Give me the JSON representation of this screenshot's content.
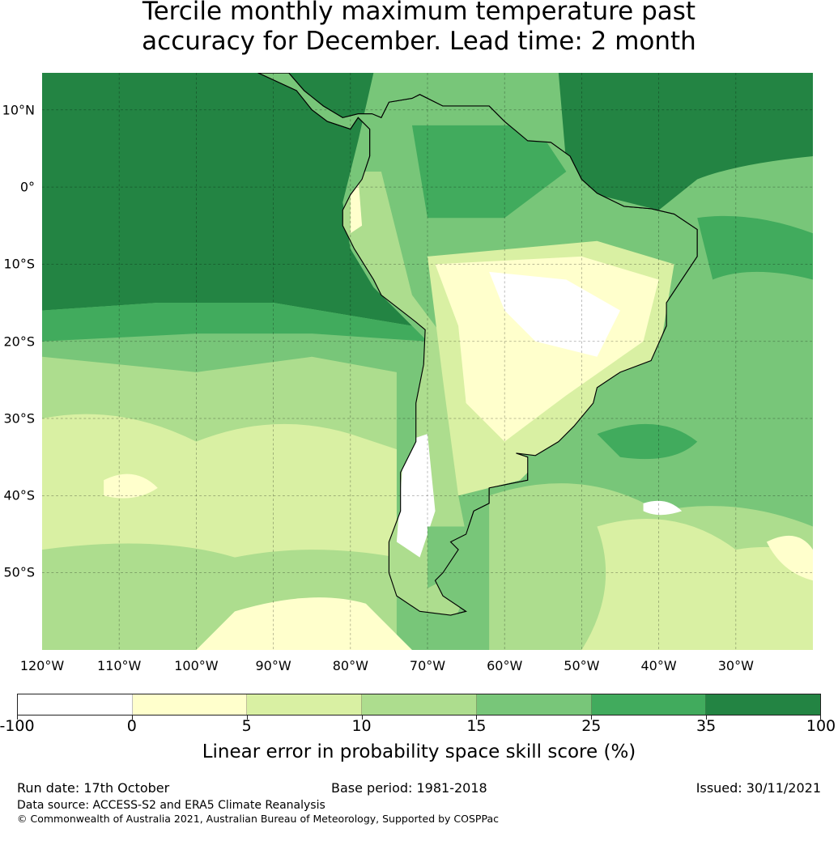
{
  "title": {
    "line1": "Tercile monthly maximum temperature past",
    "line2": "accuracy for December. Lead time: 2 month"
  },
  "map": {
    "region": "South America",
    "lat_labels": [
      "10°N",
      "0°",
      "10°S",
      "20°S",
      "30°S",
      "40°S",
      "50°S"
    ],
    "lon_labels": [
      "120°W",
      "110°W",
      "100°W",
      "90°W",
      "80°W",
      "70°W",
      "60°W",
      "50°W",
      "40°W",
      "30°W"
    ]
  },
  "colorbar": {
    "ticks": [
      "-100",
      "0",
      "5",
      "10",
      "15",
      "25",
      "35",
      "100"
    ],
    "colors": [
      "#ffffff",
      "#ffffcc",
      "#d9f0a3",
      "#addd8e",
      "#78c679",
      "#41ab5d",
      "#238443"
    ],
    "label": "Linear error in probability space skill score (%)"
  },
  "footer": {
    "run_date": "Run date: 17th October",
    "base_period": "Base period: 1981-2018",
    "issued": "Issued: 30/11/2021",
    "data_source": "Data source: ACCESS-S2 and ERA5 Climate Reanalysis",
    "copyright": "© Commonwealth of Australia 2021, Australian Bureau of Meteorology, Supported by COSPPac"
  }
}
